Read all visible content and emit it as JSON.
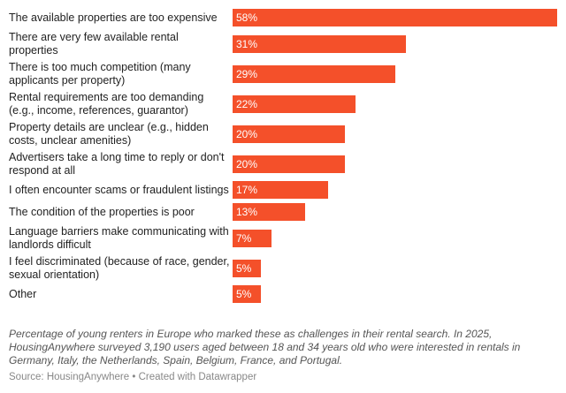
{
  "chart_data": {
    "type": "bar",
    "orientation": "horizontal",
    "categories": [
      "The available properties are too expensive",
      "There are very few available rental properties",
      "There is too much competition (many applicants per property)",
      "Rental requirements are too demanding (e.g., income, references, guarantor)",
      "Property details are unclear (e.g., hidden costs, unclear amenities)",
      "Advertisers take a long time to reply or don't respond at all",
      "I often encounter scams or fraudulent listings",
      "The condition of the properties is poor",
      "Language barriers make communicating with landlords difficult",
      "I feel discriminated (because of race, gender, sexual orientation)",
      "Other"
    ],
    "values": [
      58,
      31,
      29,
      22,
      20,
      20,
      17,
      13,
      7,
      5,
      5
    ],
    "value_labels": [
      "58%",
      "31%",
      "29%",
      "22%",
      "20%",
      "20%",
      "17%",
      "13%",
      "7%",
      "5%",
      "5%"
    ],
    "xlim": [
      0,
      58
    ],
    "grid": false,
    "bar_color": "#f4502a"
  },
  "notes": "Percentage of young renters in Europe who marked these as challenges in their rental search. In 2025, HousingAnywhere surveyed 3,190 users aged between 18 and 34 years old who were interested in rentals in Germany, Italy, the Netherlands, Spain, Belgium, France, and Portugal.",
  "source": "Source: HousingAnywhere • Created with Datawrapper"
}
